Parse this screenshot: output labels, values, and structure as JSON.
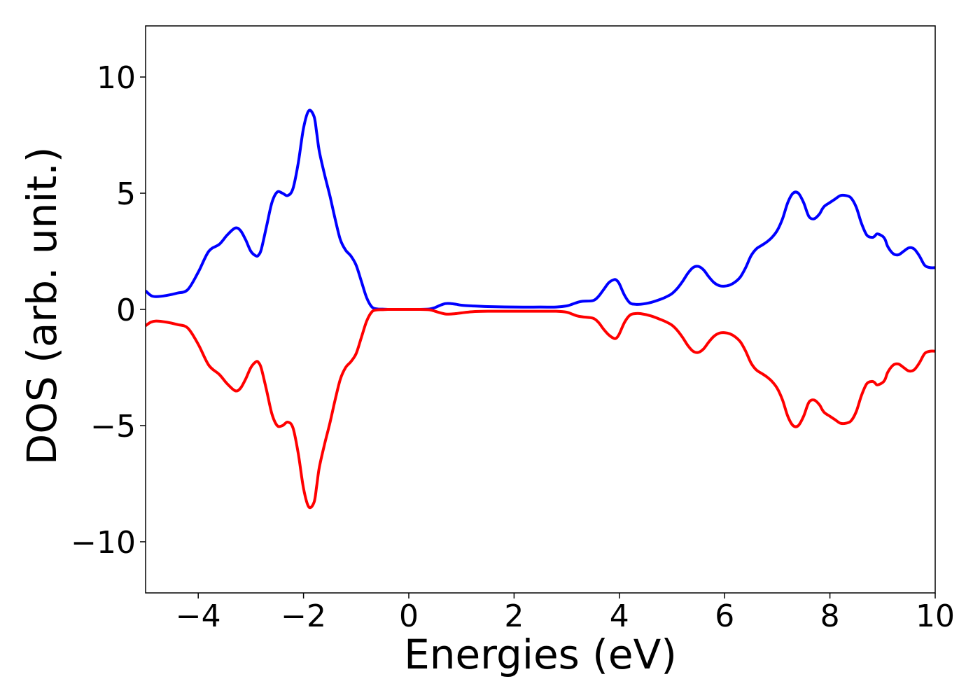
{
  "chart_data": {
    "type": "line",
    "title": "",
    "xlabel": "Energies (eV)",
    "ylabel": "DOS (arb. unit.)",
    "xlim": [
      -5,
      10
    ],
    "ylim": [
      -12.2,
      12.2
    ],
    "xticks": [
      -4,
      -2,
      0,
      2,
      4,
      6,
      8,
      10
    ],
    "xtick_labels": [
      "−4",
      "−2",
      "0",
      "2",
      "4",
      "6",
      "8",
      "10"
    ],
    "yticks": [
      -10,
      -5,
      0,
      5,
      10
    ],
    "ytick_labels": [
      "−10",
      "−5",
      "0",
      "5",
      "10"
    ],
    "grid": false,
    "legend": "none",
    "series": [
      {
        "color": "#0000ff",
        "x": [
          -5.0,
          -4.9,
          -4.8,
          -4.6,
          -4.4,
          -4.2,
          -4.0,
          -3.8,
          -3.6,
          -3.45,
          -3.3,
          -3.2,
          -3.1,
          -3.0,
          -2.9,
          -2.85,
          -2.8,
          -2.7,
          -2.6,
          -2.5,
          -2.4,
          -2.3,
          -2.2,
          -2.1,
          -2.0,
          -1.9,
          -1.8,
          -1.75,
          -1.7,
          -1.6,
          -1.5,
          -1.4,
          -1.3,
          -1.2,
          -1.1,
          -1.0,
          -0.9,
          -0.8,
          -0.7,
          -0.6,
          -0.5,
          -0.4,
          -0.3,
          0.0,
          0.2,
          0.4,
          0.5,
          0.6,
          0.7,
          0.8,
          0.9,
          1.0,
          1.2,
          1.5,
          2.0,
          2.5,
          2.8,
          3.0,
          3.1,
          3.2,
          3.3,
          3.5,
          3.6,
          3.7,
          3.8,
          3.9,
          3.95,
          4.0,
          4.1,
          4.2,
          4.3,
          4.4,
          4.6,
          4.8,
          4.9,
          5.0,
          5.1,
          5.2,
          5.3,
          5.4,
          5.5,
          5.6,
          5.7,
          5.8,
          5.9,
          6.0,
          6.1,
          6.2,
          6.3,
          6.4,
          6.5,
          6.6,
          6.7,
          6.8,
          6.9,
          7.0,
          7.1,
          7.2,
          7.3,
          7.4,
          7.5,
          7.6,
          7.7,
          7.8,
          7.85,
          7.9,
          8.0,
          8.1,
          8.2,
          8.3,
          8.4,
          8.5,
          8.6,
          8.7,
          8.8,
          8.85,
          8.9,
          9.0,
          9.05,
          9.1,
          9.2,
          9.3,
          9.4,
          9.5,
          9.6,
          9.7,
          9.8,
          9.9,
          10.0
        ],
        "y": [
          0.8,
          0.6,
          0.55,
          0.6,
          0.7,
          0.85,
          1.6,
          2.5,
          2.8,
          3.2,
          3.5,
          3.4,
          3.0,
          2.5,
          2.3,
          2.35,
          2.6,
          3.6,
          4.6,
          5.05,
          5.0,
          4.9,
          5.2,
          6.3,
          7.8,
          8.55,
          8.3,
          7.6,
          6.8,
          5.8,
          4.9,
          3.9,
          3.0,
          2.55,
          2.3,
          1.9,
          1.2,
          0.5,
          0.1,
          0.02,
          0.01,
          0.0,
          0.0,
          0.0,
          0.0,
          0.02,
          0.08,
          0.18,
          0.25,
          0.25,
          0.22,
          0.18,
          0.15,
          0.12,
          0.1,
          0.1,
          0.1,
          0.15,
          0.22,
          0.3,
          0.35,
          0.38,
          0.55,
          0.85,
          1.15,
          1.28,
          1.25,
          1.1,
          0.6,
          0.28,
          0.22,
          0.22,
          0.3,
          0.45,
          0.55,
          0.68,
          0.9,
          1.2,
          1.55,
          1.8,
          1.85,
          1.7,
          1.4,
          1.15,
          1.02,
          1.0,
          1.05,
          1.18,
          1.4,
          1.8,
          2.3,
          2.6,
          2.75,
          2.9,
          3.1,
          3.4,
          3.9,
          4.6,
          5.0,
          5.0,
          4.6,
          4.0,
          3.9,
          4.1,
          4.3,
          4.45,
          4.6,
          4.75,
          4.9,
          4.9,
          4.8,
          4.4,
          3.7,
          3.2,
          3.1,
          3.15,
          3.25,
          3.15,
          3.0,
          2.7,
          2.4,
          2.35,
          2.5,
          2.65,
          2.6,
          2.3,
          1.9,
          1.8,
          1.8
        ]
      },
      {
        "color": "#ff0000",
        "x": [
          -5.0,
          -4.9,
          -4.8,
          -4.6,
          -4.4,
          -4.2,
          -4.0,
          -3.8,
          -3.6,
          -3.45,
          -3.3,
          -3.2,
          -3.1,
          -3.0,
          -2.9,
          -2.85,
          -2.8,
          -2.7,
          -2.6,
          -2.5,
          -2.4,
          -2.3,
          -2.2,
          -2.1,
          -2.0,
          -1.9,
          -1.8,
          -1.75,
          -1.7,
          -1.6,
          -1.5,
          -1.4,
          -1.3,
          -1.2,
          -1.1,
          -1.0,
          -0.9,
          -0.8,
          -0.7,
          -0.6,
          -0.5,
          -0.4,
          -0.3,
          0.0,
          0.2,
          0.4,
          0.5,
          0.6,
          0.7,
          0.8,
          0.9,
          1.0,
          1.2,
          1.5,
          2.0,
          2.5,
          2.8,
          3.0,
          3.1,
          3.2,
          3.3,
          3.5,
          3.6,
          3.7,
          3.8,
          3.9,
          3.95,
          4.0,
          4.1,
          4.2,
          4.3,
          4.4,
          4.6,
          4.8,
          4.9,
          5.0,
          5.1,
          5.2,
          5.3,
          5.4,
          5.5,
          5.6,
          5.7,
          5.8,
          5.9,
          6.0,
          6.1,
          6.2,
          6.3,
          6.4,
          6.5,
          6.6,
          6.7,
          6.8,
          6.9,
          7.0,
          7.1,
          7.2,
          7.3,
          7.4,
          7.5,
          7.6,
          7.7,
          7.8,
          7.85,
          7.9,
          8.0,
          8.1,
          8.2,
          8.3,
          8.4,
          8.5,
          8.6,
          8.7,
          8.8,
          8.85,
          8.9,
          9.0,
          9.05,
          9.1,
          9.2,
          9.3,
          9.4,
          9.5,
          9.6,
          9.7,
          9.8,
          9.9,
          10.0
        ],
        "y": [
          -0.7,
          -0.55,
          -0.5,
          -0.55,
          -0.65,
          -0.8,
          -1.5,
          -2.4,
          -2.8,
          -3.2,
          -3.5,
          -3.4,
          -3.0,
          -2.5,
          -2.25,
          -2.3,
          -2.55,
          -3.5,
          -4.5,
          -5.0,
          -5.0,
          -4.85,
          -5.1,
          -6.2,
          -7.7,
          -8.5,
          -8.3,
          -7.6,
          -6.8,
          -5.8,
          -4.9,
          -3.9,
          -3.0,
          -2.5,
          -2.25,
          -1.9,
          -1.2,
          -0.5,
          -0.1,
          -0.02,
          -0.01,
          0.0,
          0.0,
          0.0,
          0.0,
          -0.02,
          -0.08,
          -0.15,
          -0.2,
          -0.2,
          -0.18,
          -0.15,
          -0.1,
          -0.08,
          -0.08,
          -0.08,
          -0.08,
          -0.12,
          -0.2,
          -0.28,
          -0.32,
          -0.38,
          -0.55,
          -0.85,
          -1.1,
          -1.25,
          -1.22,
          -1.05,
          -0.55,
          -0.25,
          -0.18,
          -0.18,
          -0.28,
          -0.45,
          -0.55,
          -0.68,
          -0.9,
          -1.2,
          -1.55,
          -1.8,
          -1.85,
          -1.7,
          -1.4,
          -1.15,
          -1.02,
          -1.0,
          -1.05,
          -1.18,
          -1.4,
          -1.8,
          -2.3,
          -2.6,
          -2.75,
          -2.9,
          -3.1,
          -3.4,
          -3.9,
          -4.6,
          -5.0,
          -5.0,
          -4.6,
          -4.0,
          -3.9,
          -4.1,
          -4.3,
          -4.45,
          -4.6,
          -4.75,
          -4.9,
          -4.9,
          -4.8,
          -4.4,
          -3.7,
          -3.2,
          -3.1,
          -3.15,
          -3.25,
          -3.15,
          -3.0,
          -2.7,
          -2.4,
          -2.35,
          -2.5,
          -2.65,
          -2.6,
          -2.3,
          -1.9,
          -1.8,
          -1.8
        ]
      }
    ]
  }
}
